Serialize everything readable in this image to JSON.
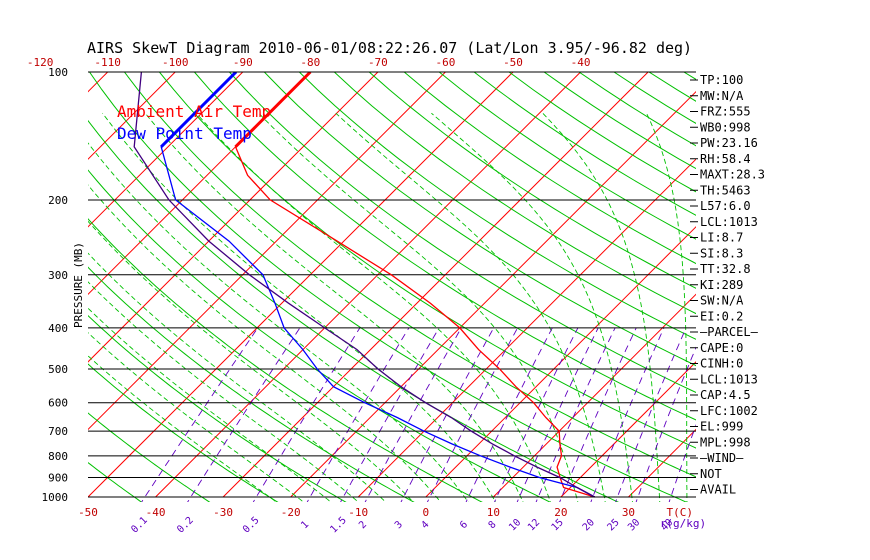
{
  "chart_data": {
    "type": "line",
    "title": "AIRS SkewT Diagram 2010-06-01/08:22:26.07 (Lat/Lon 3.95/-96.82 deg)",
    "ylabel": "PRESSURE (MB)",
    "x_unit_label": "T(C)",
    "mixing_unit_label": "r(g/kg)",
    "log_pressure_axis": true,
    "pressure_range": [
      1000,
      100
    ],
    "temp_range_at_1000": [
      -50,
      40
    ],
    "pressure_ticks": [
      100,
      200,
      300,
      400,
      500,
      600,
      700,
      800,
      900,
      1000
    ],
    "pressure_tick_labels": [
      "100",
      "200",
      "300",
      "400",
      "500",
      "600",
      "700",
      "800",
      "900",
      "1000"
    ],
    "top_temp_ticks": [
      -120,
      -110,
      -100,
      -90,
      -80,
      -70,
      -60,
      -50,
      -40
    ],
    "top_temp_labels": [
      "-120",
      "-110",
      "-100",
      "-90",
      "-80",
      "-70",
      "-60",
      "-50",
      "-40"
    ],
    "bottom_temp_ticks": [
      -50,
      -40,
      -30,
      -20,
      -10,
      0,
      10,
      20,
      30
    ],
    "bottom_temp_labels": [
      "-50",
      "-40",
      "-30",
      "-20",
      "-10",
      "0",
      "10",
      "20",
      "30"
    ],
    "mixing_ratio_labels": [
      "0.1",
      "0.2",
      "0.5",
      "1",
      "1.5",
      "2",
      "3",
      "4",
      "6",
      "8",
      "10",
      "12",
      "15",
      "20",
      "25",
      "30",
      "40"
    ],
    "legend": [
      {
        "label": "Ambient Air Temp",
        "color": "#ff0000"
      },
      {
        "label": "Dew Point Temp",
        "color": "#0000ff"
      }
    ],
    "series": [
      {
        "name": "Ambient Air Temp",
        "color": "#ff0000",
        "points": [
          [
            100,
            -80
          ],
          [
            150,
            -80
          ],
          [
            175,
            -74
          ],
          [
            200,
            -67
          ],
          [
            250,
            -51
          ],
          [
            300,
            -38
          ],
          [
            350,
            -28
          ],
          [
            400,
            -20
          ],
          [
            450,
            -14
          ],
          [
            500,
            -8
          ],
          [
            550,
            -3
          ],
          [
            600,
            2
          ],
          [
            650,
            6
          ],
          [
            700,
            10
          ],
          [
            750,
            12
          ],
          [
            800,
            14
          ],
          [
            850,
            15
          ],
          [
            900,
            17
          ],
          [
            950,
            19
          ],
          [
            1000,
            25
          ]
        ]
      },
      {
        "name": "Dew Point Temp",
        "color": "#0000ff",
        "points": [
          [
            100,
            -91
          ],
          [
            150,
            -91
          ],
          [
            200,
            -81
          ],
          [
            250,
            -67
          ],
          [
            300,
            -57
          ],
          [
            350,
            -51
          ],
          [
            400,
            -46
          ],
          [
            450,
            -40
          ],
          [
            500,
            -35
          ],
          [
            550,
            -30
          ],
          [
            600,
            -23
          ],
          [
            650,
            -16
          ],
          [
            700,
            -10
          ],
          [
            750,
            -4
          ],
          [
            800,
            2
          ],
          [
            850,
            8
          ],
          [
            900,
            14
          ],
          [
            950,
            21
          ],
          [
            1000,
            25
          ]
        ]
      },
      {
        "name": "",
        "color": "#400080",
        "points": [
          [
            100,
            -105
          ],
          [
            150,
            -95
          ],
          [
            200,
            -82
          ],
          [
            250,
            -70
          ],
          [
            300,
            -59
          ],
          [
            350,
            -49
          ],
          [
            400,
            -40
          ],
          [
            450,
            -32
          ],
          [
            500,
            -26
          ],
          [
            550,
            -20
          ],
          [
            600,
            -14
          ],
          [
            650,
            -8
          ],
          [
            700,
            -3
          ],
          [
            750,
            2
          ],
          [
            800,
            7
          ],
          [
            850,
            12
          ],
          [
            900,
            17
          ],
          [
            950,
            21
          ],
          [
            1000,
            25
          ]
        ]
      }
    ],
    "side_panel": [
      "TP:100",
      "MW:N/A",
      "FRZ:555",
      "WB0:998",
      "PW:23.16",
      "RH:58.4",
      "MAXT:28.3",
      "TH:5463",
      "L57:6.0",
      "LCL:1013",
      "LI:8.7",
      "SI:8.3",
      "TT:32.8",
      "KI:289",
      "SW:N/A",
      "EI:0.2",
      "–PARCEL–",
      "CAPE:0",
      "CINH:0",
      "LCL:1013",
      "CAP:4.5",
      "LFC:1002",
      "EL:999",
      "MPL:998",
      "–WIND–",
      "NOT",
      "AVAIL"
    ],
    "colors": {
      "isotherm": "#ff0000",
      "dry_adiabat": "#00c000",
      "moist_adiabat": "#00c000",
      "mixing_ratio": "#6000c0",
      "isobar": "#000000"
    }
  }
}
